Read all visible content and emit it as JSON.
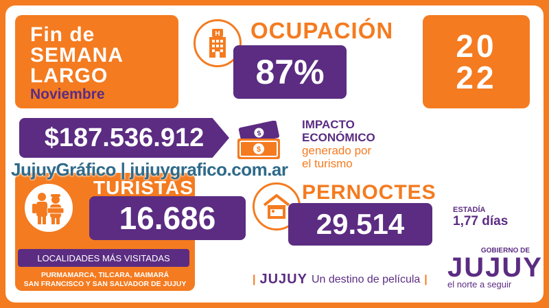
{
  "header": {
    "title_line1": "Fin de",
    "title_line2": "SEMANA",
    "title_line3": "LARGO",
    "month": "Noviembre"
  },
  "ocupacion": {
    "label": "OCUPACIÓN",
    "value": "87%",
    "icon": "hotel-icon"
  },
  "year": {
    "top": "20",
    "bottom": "22"
  },
  "impacto": {
    "value": "$187.536.912",
    "label_line1": "IMPACTO",
    "label_line2": "ECONÓMICO",
    "label_line3": "generado por",
    "label_line4": "el turismo",
    "icon": "money-icon"
  },
  "watermark": "JujuyGráfico | jujuygrafico.com.ar",
  "turistas": {
    "label": "TURISTAS",
    "value": "16.686",
    "icon": "tourists-icon",
    "localidades_label": "LOCALIDADES MÁS VISITADAS",
    "localidades_line1": "PURMAMARCA, TILCARA, MAIMARÁ",
    "localidades_line2": "SAN FRANCISCO Y SAN SALVADOR DE JUJUY"
  },
  "pernoctes": {
    "label": "PERNOCTES",
    "value": "29.514",
    "icon": "house-bed-icon"
  },
  "estadia": {
    "label": "ESTADÍA",
    "value": "1,77 días"
  },
  "tagline": {
    "brand": "JUJUY",
    "text": "Un destino de película"
  },
  "gobierno": {
    "line1": "GOBIERNO DE",
    "brand": "JUJUY",
    "line3": "el norte a seguir"
  },
  "colors": {
    "orange": "#f47b20",
    "purple": "#5b2c82",
    "white": "#ffffff"
  }
}
